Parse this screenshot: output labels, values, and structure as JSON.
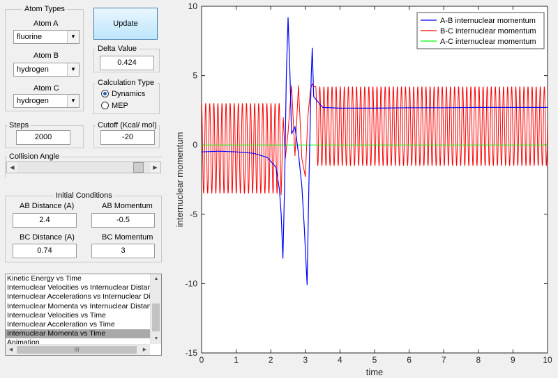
{
  "atom_types": {
    "title": "Atom Types",
    "atom_a_label": "Atom A",
    "atom_a_value": "fluorine",
    "atom_b_label": "Atom B",
    "atom_b_value": "hydrogen",
    "atom_c_label": "Atom C",
    "atom_c_value": "hydrogen"
  },
  "update_button": "Update",
  "delta": {
    "title": "Delta Value",
    "value": "0.424"
  },
  "calc_type": {
    "title": "Calculation Type",
    "options": [
      {
        "label": "Dynamics",
        "selected": true
      },
      {
        "label": "MEP",
        "selected": false
      }
    ]
  },
  "steps": {
    "title": "Steps",
    "value": "2000"
  },
  "cutoff": {
    "title": "Cutoff (Kcal/ mol)",
    "value": "-20"
  },
  "collision": {
    "title": "Collision Angle",
    "level": 0.95
  },
  "initial": {
    "title": "Initial Conditions",
    "ab_distance_label": "AB Distance (A)",
    "ab_distance_value": "2.4",
    "ab_momentum_label": "AB Momentum",
    "ab_momentum_value": "-0.5",
    "bc_distance_label": "BC Distance (A)",
    "bc_distance_value": "0.74",
    "bc_momentum_label": "BC Momentum",
    "bc_momentum_value": "3"
  },
  "plot_list": {
    "items": [
      "Kinetic Energy vs Time",
      "Internuclear Velocities vs Internuclear Distance",
      "Internuclear Accelerations vs Internuclear Distance",
      "Internuclear Momenta vs Internuclear Distance",
      "Internuclear Velocities vs Time",
      "Internuclear Acceleration vs Time",
      "Internuclear Momenta vs Time",
      "Animation"
    ],
    "selected_index": 6,
    "hscroll_thumb_glyph": "III"
  },
  "chart_data": {
    "type": "line",
    "xlabel": "time",
    "ylabel": "internuclear momentum",
    "xlim": [
      0,
      10
    ],
    "ylim": [
      -15,
      10
    ],
    "xticks": [
      "0",
      "1",
      "2",
      "3",
      "4",
      "5",
      "6",
      "7",
      "8",
      "9",
      "10"
    ],
    "yticks": [
      "-15",
      "-10",
      "-5",
      "0",
      "5",
      "10"
    ],
    "grid": false,
    "legend_position": "top-right",
    "series": [
      {
        "name": "A-B internuclear momentum",
        "color": "#0000ff"
      },
      {
        "name": "B-C internuclear momentum",
        "color": "#ff0000"
      },
      {
        "name": "A-C internuclear momentum",
        "color": "#00ff00"
      }
    ],
    "ab_points": [
      [
        0,
        -0.5
      ],
      [
        0.5,
        -0.45
      ],
      [
        1.0,
        -0.5
      ],
      [
        1.5,
        -0.6
      ],
      [
        1.9,
        -0.9
      ],
      [
        2.15,
        -1.6
      ],
      [
        2.25,
        -3.2
      ],
      [
        2.3,
        -5
      ],
      [
        2.35,
        -8.2
      ],
      [
        2.4,
        -3
      ],
      [
        2.45,
        5
      ],
      [
        2.5,
        9.2
      ],
      [
        2.55,
        5.5
      ],
      [
        2.6,
        0.8
      ],
      [
        2.7,
        1.3
      ],
      [
        2.8,
        -0.6
      ],
      [
        2.9,
        -3
      ],
      [
        2.97,
        -6
      ],
      [
        3.05,
        -10.1
      ],
      [
        3.1,
        -3
      ],
      [
        3.17,
        5
      ],
      [
        3.2,
        7
      ],
      [
        3.24,
        3.5
      ],
      [
        3.3,
        3.3
      ],
      [
        3.4,
        3
      ],
      [
        3.5,
        2.7
      ],
      [
        4,
        2.65
      ],
      [
        5,
        2.65
      ],
      [
        6,
        2.68
      ],
      [
        7,
        2.68
      ],
      [
        8,
        2.7
      ],
      [
        9,
        2.7
      ],
      [
        10,
        2.7
      ]
    ],
    "bc_osc_before": {
      "t_end": 2.3,
      "period": 0.118,
      "max": 3.0,
      "min": -3.5
    },
    "bc_osc_after": {
      "t_start": 3.3,
      "period": 0.118,
      "max": 4.2,
      "min": -1.5
    },
    "bc_transition_points": [
      [
        2.3,
        -3.6
      ],
      [
        2.36,
        2
      ],
      [
        2.42,
        -1
      ],
      [
        2.5,
        0.9
      ],
      [
        2.6,
        4.3
      ],
      [
        2.7,
        -0.8
      ],
      [
        2.8,
        4.3
      ],
      [
        2.9,
        -1
      ],
      [
        3.0,
        -2.3
      ],
      [
        3.07,
        2
      ],
      [
        3.15,
        4
      ],
      [
        3.2,
        4.4
      ],
      [
        3.25,
        4.2
      ],
      [
        3.3,
        4.2
      ]
    ],
    "ac_value": 0
  }
}
